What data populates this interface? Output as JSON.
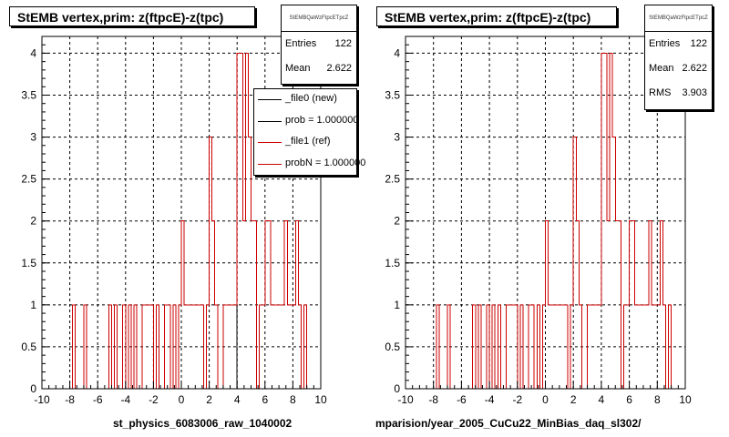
{
  "panels": [
    {
      "title": "StEMB  vertex,prim: z(ftpcE)-z(tpc)",
      "stats": {
        "name": "StEMBQaWzFtpcETpcZ",
        "rows": [
          {
            "key": "Entries",
            "value": "122"
          },
          {
            "key": "Mean",
            "value": "2.622"
          }
        ]
      },
      "legend": [
        {
          "label": "_file0 (new)",
          "color": "#000000"
        },
        {
          "label": "prob = 1.000000",
          "color": "#000000"
        },
        {
          "label": "_file1 (ref)",
          "color": "#cc0000"
        },
        {
          "label": "probN = 1.000000",
          "color": "#cc0000"
        }
      ],
      "footer": "st_physics_6083006_raw_1040002"
    },
    {
      "title": "StEMB  vertex,prim: z(ftpcE)-z(tpc)",
      "stats": {
        "name": "StEMBQaWzFtpcETpcZ",
        "rows": [
          {
            "key": "Entries",
            "value": "122"
          },
          {
            "key": "Mean",
            "value": "2.622"
          },
          {
            "key": "RMS",
            "value": "3.903"
          }
        ]
      },
      "footer": "mparision/year_2005_CuCu22_MinBias_daq_sl302/"
    }
  ],
  "chart_data": [
    {
      "type": "histogram",
      "title": "StEMB  vertex,prim: z(ftpcE)-z(tpc)",
      "xlim": [
        -10,
        10
      ],
      "ylim": [
        0,
        4.2
      ],
      "x_ticks": [
        -10,
        -8,
        -6,
        -4,
        -2,
        0,
        2,
        4,
        6,
        8,
        10
      ],
      "y_ticks": [
        0,
        0.5,
        1,
        1.5,
        2,
        2.5,
        3,
        3.5,
        4
      ],
      "bin_width": 0.2,
      "grid": true,
      "series": [
        {
          "name": "_file0 (new)",
          "color": "#000000",
          "bins": [
            [
              4.0,
              4
            ],
            [
              4.2,
              4
            ],
            [
              4.4,
              2
            ],
            [
              4.6,
              4
            ],
            [
              4.8,
              3
            ],
            [
              5.0,
              2
            ],
            [
              5.2,
              2
            ]
          ]
        },
        {
          "name": "_file1 (ref)",
          "color": "#cc0000",
          "bins": [
            [
              -7.8,
              1
            ],
            [
              -7.0,
              1
            ],
            [
              -5.2,
              1
            ],
            [
              -4.8,
              1
            ],
            [
              -4.2,
              1
            ],
            [
              -3.8,
              1
            ],
            [
              -3.4,
              1
            ],
            [
              -2.8,
              1
            ],
            [
              -2.6,
              1
            ],
            [
              -2.4,
              1
            ],
            [
              -2.2,
              1
            ],
            [
              -1.8,
              1
            ],
            [
              -1.2,
              1
            ],
            [
              -1.0,
              1
            ],
            [
              -0.6,
              1
            ],
            [
              -0.2,
              1
            ],
            [
              0.0,
              2
            ],
            [
              0.2,
              1
            ],
            [
              0.4,
              1
            ],
            [
              0.6,
              1
            ],
            [
              0.8,
              1
            ],
            [
              1.0,
              1
            ],
            [
              1.2,
              1
            ],
            [
              1.4,
              1
            ],
            [
              1.8,
              1
            ],
            [
              2.0,
              3
            ],
            [
              2.2,
              2
            ],
            [
              2.4,
              1
            ],
            [
              3.0,
              1
            ],
            [
              3.2,
              1
            ],
            [
              3.4,
              1
            ],
            [
              3.6,
              1
            ],
            [
              3.8,
              1
            ],
            [
              4.0,
              4
            ],
            [
              4.2,
              4
            ],
            [
              4.4,
              2
            ],
            [
              4.6,
              4
            ],
            [
              4.8,
              3
            ],
            [
              5.0,
              2
            ],
            [
              5.2,
              2
            ],
            [
              5.6,
              1
            ],
            [
              5.8,
              1
            ],
            [
              6.0,
              2
            ],
            [
              6.2,
              2
            ],
            [
              6.4,
              1
            ],
            [
              6.6,
              1
            ],
            [
              6.8,
              1
            ],
            [
              7.0,
              1
            ],
            [
              7.2,
              1
            ],
            [
              7.4,
              2
            ],
            [
              7.6,
              1
            ],
            [
              7.8,
              1
            ],
            [
              8.0,
              1
            ],
            [
              8.2,
              2
            ],
            [
              8.4,
              1
            ],
            [
              8.8,
              1
            ]
          ]
        }
      ]
    },
    {
      "type": "histogram",
      "title": "StEMB  vertex,prim: z(ftpcE)-z(tpc)",
      "xlim": [
        -10,
        10
      ],
      "ylim": [
        0,
        4.2
      ],
      "x_ticks": [
        -10,
        -8,
        -6,
        -4,
        -2,
        0,
        2,
        4,
        6,
        8,
        10
      ],
      "y_ticks": [
        0,
        0.5,
        1,
        1.5,
        2,
        2.5,
        3,
        3.5,
        4
      ],
      "bin_width": 0.2,
      "grid": true,
      "series": [
        {
          "name": "_file1 (ref)",
          "color": "#cc0000",
          "bins": [
            [
              -7.8,
              1
            ],
            [
              -7.0,
              1
            ],
            [
              -5.2,
              1
            ],
            [
              -4.8,
              1
            ],
            [
              -4.2,
              1
            ],
            [
              -3.8,
              1
            ],
            [
              -3.4,
              1
            ],
            [
              -2.8,
              1
            ],
            [
              -2.6,
              1
            ],
            [
              -2.4,
              1
            ],
            [
              -2.2,
              1
            ],
            [
              -1.8,
              1
            ],
            [
              -1.2,
              1
            ],
            [
              -1.0,
              1
            ],
            [
              -0.6,
              1
            ],
            [
              -0.2,
              1
            ],
            [
              0.0,
              2
            ],
            [
              0.2,
              1
            ],
            [
              0.4,
              1
            ],
            [
              0.6,
              1
            ],
            [
              0.8,
              1
            ],
            [
              1.0,
              1
            ],
            [
              1.2,
              1
            ],
            [
              1.4,
              1
            ],
            [
              1.8,
              1
            ],
            [
              2.0,
              3
            ],
            [
              2.2,
              2
            ],
            [
              2.4,
              1
            ],
            [
              3.0,
              1
            ],
            [
              3.2,
              1
            ],
            [
              3.4,
              1
            ],
            [
              3.6,
              1
            ],
            [
              3.8,
              1
            ],
            [
              4.0,
              4
            ],
            [
              4.2,
              4
            ],
            [
              4.4,
              2
            ],
            [
              4.6,
              4
            ],
            [
              4.8,
              3
            ],
            [
              5.0,
              2
            ],
            [
              5.2,
              2
            ],
            [
              5.6,
              1
            ],
            [
              5.8,
              1
            ],
            [
              6.0,
              2
            ],
            [
              6.2,
              2
            ],
            [
              6.4,
              1
            ],
            [
              6.6,
              1
            ],
            [
              6.8,
              1
            ],
            [
              7.0,
              1
            ],
            [
              7.2,
              1
            ],
            [
              7.4,
              2
            ],
            [
              7.6,
              1
            ],
            [
              7.8,
              1
            ],
            [
              8.0,
              1
            ],
            [
              8.2,
              2
            ],
            [
              8.4,
              1
            ],
            [
              8.8,
              1
            ]
          ]
        }
      ]
    }
  ]
}
